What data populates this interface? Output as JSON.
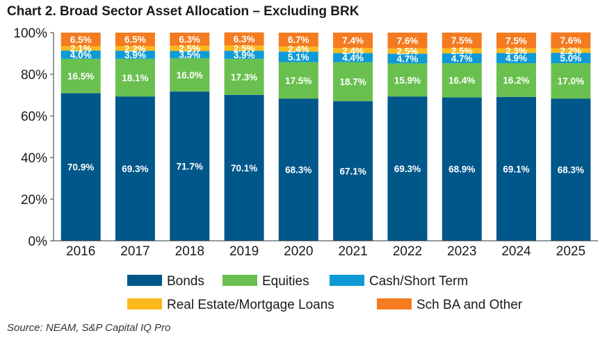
{
  "chart_data": {
    "type": "bar",
    "stacked": true,
    "title": "Chart 2. Broad Sector Asset Allocation – Excluding BRK",
    "source": "Source: NEAM, S&P Capital IQ Pro",
    "categories": [
      "2016",
      "2017",
      "2018",
      "2019",
      "2020",
      "2021",
      "2022",
      "2023",
      "2024",
      "2025"
    ],
    "ylim": [
      0,
      100
    ],
    "yticks": [
      0,
      20,
      40,
      60,
      80,
      100
    ],
    "ytick_labels": [
      "0%",
      "20%",
      "40%",
      "60%",
      "80%",
      "100%"
    ],
    "grid": false,
    "legend_position": "bottom",
    "series": [
      {
        "name": "Bonds",
        "color": "#00578a",
        "values": [
          70.9,
          69.3,
          71.7,
          70.1,
          68.3,
          67.1,
          69.3,
          68.9,
          69.1,
          68.3
        ],
        "labels": [
          "70.9%",
          "69.3%",
          "71.7%",
          "70.1%",
          "68.3%",
          "67.1%",
          "69.3%",
          "68.9%",
          "69.1%",
          "68.3%"
        ]
      },
      {
        "name": "Equities",
        "color": "#6ac04f",
        "values": [
          16.5,
          18.1,
          16.0,
          17.3,
          17.5,
          18.7,
          15.9,
          16.4,
          16.2,
          17.0
        ],
        "labels": [
          "16.5%",
          "18.1%",
          "16.0%",
          "17.3%",
          "17.5%",
          "18.7%",
          "15.9%",
          "16.4%",
          "16.2%",
          "17.0%"
        ]
      },
      {
        "name": "Cash/Short Term",
        "color": "#0f9ad6",
        "values": [
          4.0,
          3.9,
          3.5,
          3.9,
          5.1,
          4.4,
          4.7,
          4.7,
          4.9,
          5.0
        ],
        "labels": [
          "4.0%",
          "3.9%",
          "3.5%",
          "3.9%",
          "5.1%",
          "4.4%",
          "4.7%",
          "4.7%",
          "4.9%",
          "5.0%"
        ]
      },
      {
        "name": "Real Estate/Mortgage Loans",
        "color": "#fbb91e",
        "values": [
          2.1,
          2.2,
          2.5,
          2.5,
          2.4,
          2.4,
          2.5,
          2.5,
          2.3,
          2.2
        ],
        "labels": [
          "2.1%",
          "2.2%",
          "2.5%",
          "2.5%",
          "2.4%",
          "2.4%",
          "2.5%",
          "2.5%",
          "2.3%",
          "2.2%"
        ]
      },
      {
        "name": "Sch BA and Other",
        "color": "#f47b20",
        "values": [
          6.5,
          6.5,
          6.3,
          6.3,
          6.7,
          7.4,
          7.6,
          7.5,
          7.5,
          7.6
        ],
        "labels": [
          "6.5%",
          "6.5%",
          "6.3%",
          "6.3%",
          "6.7%",
          "7.4%",
          "7.6%",
          "7.5%",
          "7.5%",
          "7.6%"
        ]
      }
    ]
  }
}
